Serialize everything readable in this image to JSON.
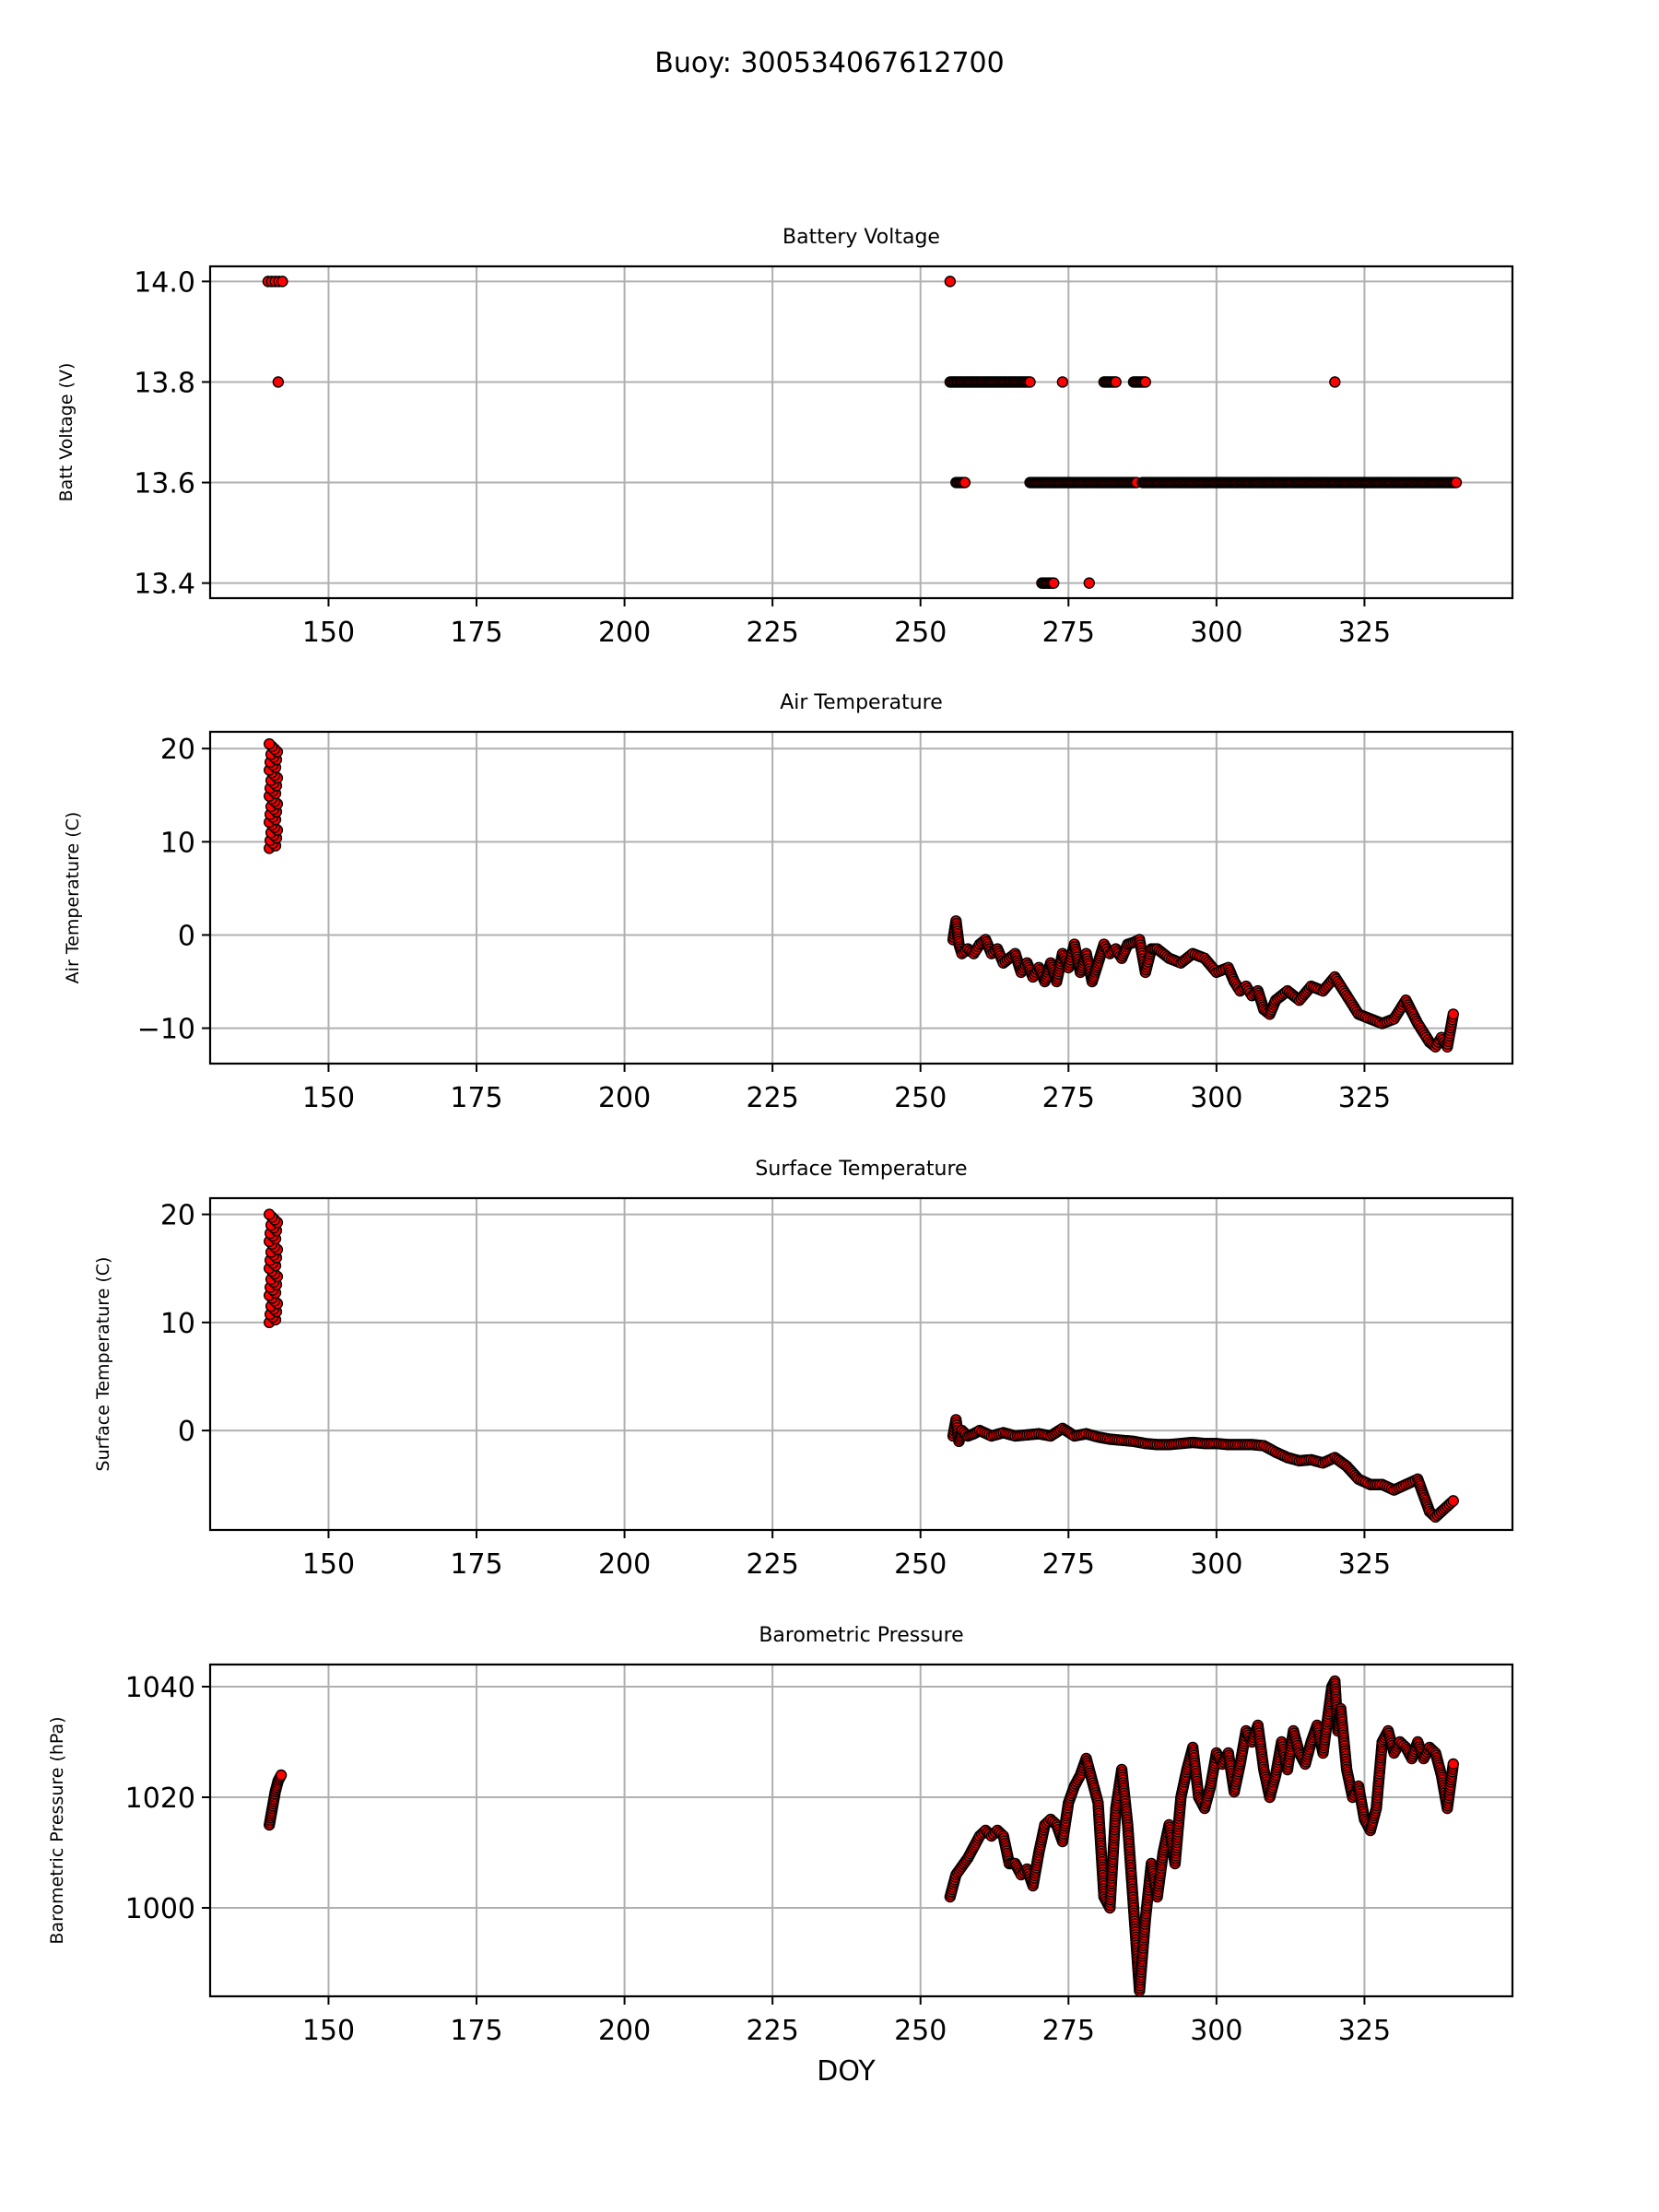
{
  "figure": {
    "suptitle": "Buoy: 300534067612700",
    "xlabel": "DOY",
    "marker_color": "#ff0000",
    "marker_edge_color": "#000000",
    "grid_color": "#b0b0b0"
  },
  "chart_data": [
    {
      "type": "scatter",
      "title": "Battery Voltage",
      "xlabel": "",
      "ylabel": "Batt Voltage (V)",
      "xlim": [
        130,
        350
      ],
      "ylim": [
        13.37,
        14.03
      ],
      "xticks": [
        150,
        175,
        200,
        225,
        250,
        275,
        300,
        325
      ],
      "yticks": [
        13.4,
        13.6,
        13.8,
        14.0
      ],
      "ytick_labels": [
        "13.4",
        "13.6",
        "13.8",
        "14.0"
      ],
      "grid": true,
      "series": [
        {
          "points": [
            [
              139.8,
              14.0
            ],
            [
              140.4,
              14.0
            ],
            [
              141.0,
              14.0
            ],
            [
              141.6,
              14.0
            ],
            [
              142.2,
              14.0
            ],
            [
              141.5,
              13.8
            ],
            [
              255.0,
              14.0
            ],
            [
              320.0,
              13.8
            ],
            [
              274.0,
              13.8
            ],
            [
              278.5,
              13.4
            ]
          ],
          "runs": [
            {
              "y": 13.8,
              "x_start": 255.0,
              "x_end": 268.5
            },
            {
              "y": 13.8,
              "x_start": 281.0,
              "x_end": 283.0
            },
            {
              "y": 13.8,
              "x_start": 286.0,
              "x_end": 288.0
            },
            {
              "y": 13.6,
              "x_start": 256.0,
              "x_end": 257.5
            },
            {
              "y": 13.6,
              "x_start": 268.5,
              "x_end": 286.5
            },
            {
              "y": 13.6,
              "x_start": 287.5,
              "x_end": 340.5
            },
            {
              "y": 13.4,
              "x_start": 270.5,
              "x_end": 272.5
            }
          ]
        }
      ]
    },
    {
      "type": "scatter",
      "title": "Air Temperature",
      "xlabel": "",
      "ylabel": "Air Temperature (C)",
      "xlim": [
        130,
        350
      ],
      "ylim": [
        -13.8,
        21.8
      ],
      "xticks": [
        150,
        175,
        200,
        225,
        250,
        275,
        300,
        325
      ],
      "yticks": [
        -10,
        0,
        10,
        20
      ],
      "ytick_labels": [
        "−10",
        "0",
        "10",
        "20"
      ],
      "grid": true,
      "series": [
        {
          "clusters": [
            [
              140.0,
              141.5,
              9.3,
              20.5
            ]
          ],
          "x": [
            255.5,
            256.0,
            256.5,
            257.0,
            258.0,
            259.0,
            260.0,
            261.0,
            262.0,
            263.0,
            264.0,
            265.0,
            266.0,
            267.0,
            268.0,
            269.0,
            270.0,
            271.0,
            272.0,
            273.0,
            274.0,
            275.0,
            276.0,
            277.0,
            278.0,
            279.0,
            280.0,
            281.0,
            282.0,
            283.0,
            284.0,
            285.0,
            286.0,
            287.0,
            288.0,
            289.0,
            290.0,
            292.0,
            294.0,
            296.0,
            298.0,
            300.0,
            302.0,
            303.0,
            304.0,
            305.0,
            306.0,
            307.0,
            308.0,
            309.0,
            310.0,
            312.0,
            314.0,
            316.0,
            318.0,
            320.0,
            322.0,
            324.0,
            326.0,
            328.0,
            330.0,
            332.0,
            334.0,
            335.0,
            336.0,
            337.0,
            338.0,
            339.0,
            340.0
          ],
          "y": [
            -0.5,
            1.5,
            -1.0,
            -2.0,
            -1.5,
            -2.0,
            -1.0,
            -0.5,
            -2.0,
            -1.5,
            -3.0,
            -2.5,
            -2.0,
            -4.0,
            -3.0,
            -4.5,
            -3.5,
            -5.0,
            -3.0,
            -5.0,
            -2.0,
            -3.5,
            -1.0,
            -4.0,
            -2.0,
            -5.0,
            -3.0,
            -1.0,
            -2.0,
            -1.5,
            -2.5,
            -1.0,
            -0.8,
            -0.5,
            -4.0,
            -1.5,
            -1.5,
            -2.5,
            -3.0,
            -2.0,
            -2.5,
            -4.0,
            -3.5,
            -5.0,
            -6.0,
            -5.5,
            -6.5,
            -6.0,
            -8.0,
            -8.5,
            -7.0,
            -6.0,
            -7.0,
            -5.5,
            -6.0,
            -4.5,
            -6.5,
            -8.5,
            -9.0,
            -9.5,
            -9.0,
            -7.0,
            -9.5,
            -10.5,
            -11.5,
            -12.0,
            -11.0,
            -12.0,
            -8.5
          ]
        }
      ]
    },
    {
      "type": "scatter",
      "title": "Surface Temperature",
      "xlabel": "",
      "ylabel": "Surface Temperature (C)",
      "xlim": [
        130,
        350
      ],
      "ylim": [
        -9.2,
        21.5
      ],
      "xticks": [
        150,
        175,
        200,
        225,
        250,
        275,
        300,
        325
      ],
      "yticks": [
        0,
        10,
        20
      ],
      "ytick_labels": [
        "0",
        "10",
        "20"
      ],
      "grid": true,
      "series": [
        {
          "clusters": [
            [
              140.0,
              141.5,
              10.0,
              20.0
            ]
          ],
          "x": [
            255.5,
            256.0,
            256.5,
            257.0,
            258.0,
            259.0,
            260.0,
            262.0,
            264.0,
            266.0,
            268.0,
            270.0,
            272.0,
            274.0,
            276.0,
            278.0,
            280.0,
            282.0,
            284.0,
            286.0,
            288.0,
            290.0,
            292.0,
            294.0,
            296.0,
            298.0,
            300.0,
            302.0,
            304.0,
            306.0,
            308.0,
            310.0,
            312.0,
            314.0,
            316.0,
            318.0,
            320.0,
            322.0,
            324.0,
            326.0,
            328.0,
            330.0,
            332.0,
            334.0,
            335.0,
            336.0,
            337.0,
            338.0,
            339.0,
            340.0
          ],
          "y": [
            -0.5,
            1.0,
            -1.0,
            0.0,
            -0.5,
            -0.3,
            0.0,
            -0.5,
            -0.2,
            -0.5,
            -0.4,
            -0.3,
            -0.5,
            0.2,
            -0.5,
            -0.3,
            -0.6,
            -0.8,
            -0.9,
            -1.0,
            -1.2,
            -1.3,
            -1.3,
            -1.2,
            -1.1,
            -1.2,
            -1.2,
            -1.3,
            -1.3,
            -1.3,
            -1.4,
            -2.0,
            -2.5,
            -2.8,
            -2.7,
            -3.0,
            -2.5,
            -3.3,
            -4.5,
            -5.0,
            -5.0,
            -5.5,
            -5.0,
            -4.5,
            -6.0,
            -7.5,
            -8.0,
            -7.5,
            -7.0,
            -6.5
          ]
        }
      ]
    },
    {
      "type": "scatter",
      "title": "Barometric Pressure",
      "xlabel": "DOY",
      "ylabel": "Barometric Pressure (hPa)",
      "xlim": [
        130,
        350
      ],
      "ylim": [
        984,
        1044
      ],
      "xticks": [
        150,
        175,
        200,
        225,
        250,
        275,
        300,
        325
      ],
      "yticks": [
        1000,
        1020,
        1040
      ],
      "ytick_labels": [
        "1000",
        "1020",
        "1040"
      ],
      "grid": true,
      "series": [
        {
          "x": [
            140.0,
            140.5,
            141.0,
            141.5,
            142.0,
            255.0,
            256.0,
            258.0,
            260.0,
            261.0,
            262.0,
            263.0,
            264.0,
            265.0,
            266.0,
            267.0,
            268.0,
            269.0,
            270.0,
            271.0,
            272.0,
            273.0,
            274.0,
            275.0,
            276.0,
            277.0,
            278.0,
            279.0,
            280.0,
            281.0,
            282.0,
            283.0,
            284.0,
            285.0,
            286.0,
            287.0,
            288.0,
            289.0,
            290.0,
            291.0,
            292.0,
            293.0,
            294.0,
            295.0,
            296.0,
            297.0,
            298.0,
            299.0,
            300.0,
            301.0,
            302.0,
            303.0,
            304.0,
            305.0,
            306.0,
            307.0,
            308.0,
            309.0,
            310.0,
            311.0,
            312.0,
            313.0,
            314.0,
            315.0,
            316.0,
            317.0,
            318.0,
            319.0,
            319.5,
            320.0,
            320.5,
            321.0,
            322.0,
            323.0,
            324.0,
            325.0,
            326.0,
            327.0,
            328.0,
            329.0,
            330.0,
            331.0,
            332.0,
            333.0,
            334.0,
            335.0,
            336.0,
            337.0,
            338.0,
            339.0,
            340.0
          ],
          "y": [
            1015,
            1018,
            1021,
            1023,
            1024,
            1002,
            1006,
            1009,
            1013,
            1014,
            1013,
            1014,
            1013,
            1008,
            1008,
            1006,
            1007,
            1004,
            1010,
            1015,
            1016,
            1015,
            1012,
            1019,
            1022,
            1024,
            1027,
            1023,
            1019,
            1002,
            1000,
            1018,
            1025,
            1015,
            1000,
            985,
            998,
            1008,
            1002,
            1010,
            1015,
            1008,
            1020,
            1025,
            1029,
            1020,
            1018,
            1022,
            1028,
            1026,
            1028,
            1021,
            1026,
            1032,
            1030,
            1033,
            1025,
            1020,
            1024,
            1030,
            1025,
            1032,
            1028,
            1026,
            1030,
            1033,
            1028,
            1036,
            1040,
            1041,
            1032,
            1036,
            1025,
            1020,
            1022,
            1016,
            1014,
            1018,
            1030,
            1032,
            1028,
            1030,
            1029,
            1027,
            1030,
            1027,
            1029,
            1028,
            1024,
            1018,
            1026
          ]
        }
      ]
    }
  ]
}
